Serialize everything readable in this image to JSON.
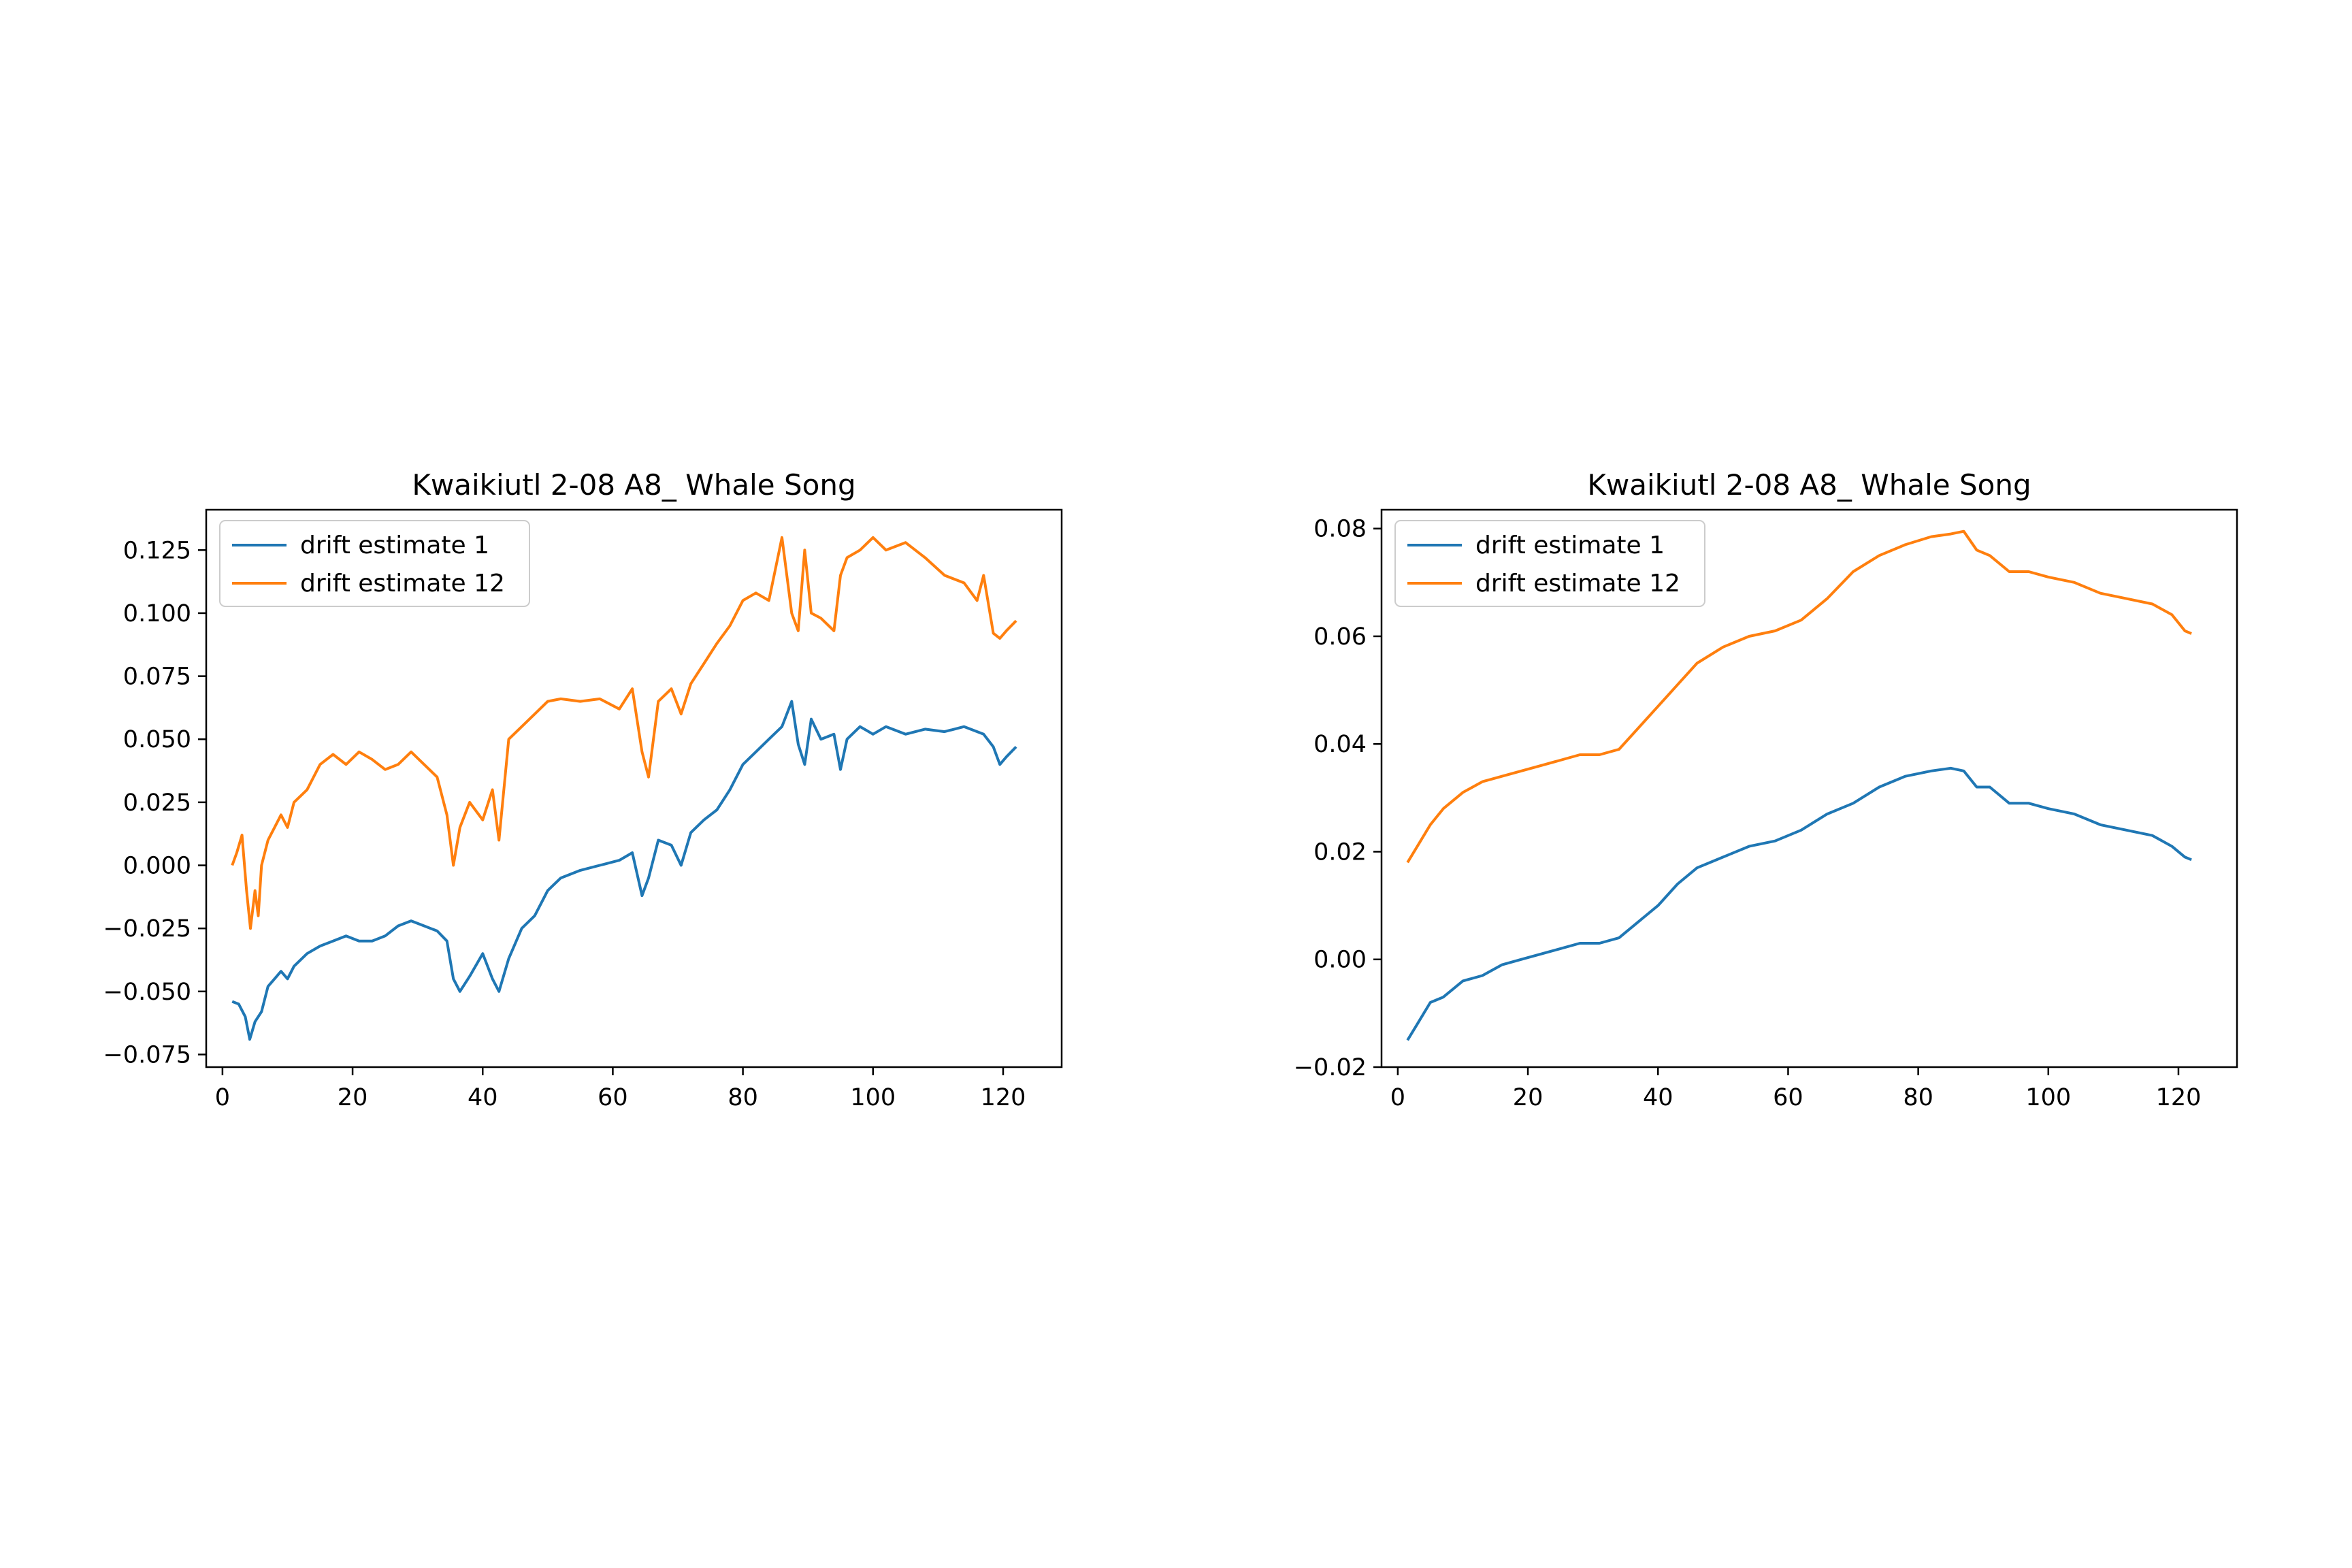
{
  "chart_data": [
    {
      "type": "line",
      "title": "Kwaikiutl 2-08 A8_ Whale Song",
      "xlabel": "",
      "ylabel": "",
      "xlim": [
        -2.5,
        129
      ],
      "ylim": [
        -0.08,
        0.141
      ],
      "grid": false,
      "legend_position": "top-left",
      "x_ticks": [
        0,
        20,
        40,
        60,
        80,
        100,
        120
      ],
      "x_tick_labels": [
        "0",
        "20",
        "40",
        "60",
        "80",
        "100",
        "120"
      ],
      "y_ticks": [
        -0.075,
        -0.05,
        -0.025,
        0.0,
        0.025,
        0.05,
        0.075,
        0.1,
        0.125
      ],
      "y_tick_labels": [
        "−0.075",
        "−0.050",
        "−0.025",
        "0.000",
        "0.025",
        "0.050",
        "0.075",
        "0.100",
        "0.125"
      ],
      "series": [
        {
          "name": "drift estimate 1",
          "color": "#1f77b4",
          "x": [
            1.5,
            2.5,
            3.5,
            4.2,
            5,
            6,
            7,
            8,
            9,
            10,
            11,
            13,
            15,
            17,
            19,
            21,
            23,
            25,
            27,
            29,
            31,
            33,
            34.5,
            35.5,
            36.5,
            38,
            40,
            41.5,
            42.5,
            44,
            46,
            48,
            50,
            52,
            55,
            58,
            61,
            63,
            64.5,
            65.5,
            67,
            69,
            70.5,
            72,
            74,
            76,
            78,
            80,
            82,
            84,
            86,
            87.5,
            88.5,
            89.5,
            90.5,
            92,
            94,
            95,
            96,
            98,
            100,
            102,
            105,
            108,
            111,
            114,
            117,
            118.5,
            119.5,
            120.5,
            122
          ],
          "y": [
            -0.054,
            -0.055,
            -0.06,
            -0.069,
            -0.062,
            -0.058,
            -0.048,
            -0.045,
            -0.042,
            -0.045,
            -0.04,
            -0.035,
            -0.032,
            -0.03,
            -0.028,
            -0.03,
            -0.03,
            -0.028,
            -0.024,
            -0.022,
            -0.024,
            -0.026,
            -0.03,
            -0.045,
            -0.05,
            -0.044,
            -0.035,
            -0.045,
            -0.05,
            -0.037,
            -0.025,
            -0.02,
            -0.01,
            -0.005,
            -0.002,
            0.0,
            0.002,
            0.005,
            -0.012,
            -0.005,
            0.01,
            0.008,
            0.0,
            0.013,
            0.018,
            0.022,
            0.03,
            0.04,
            0.045,
            0.05,
            0.055,
            0.065,
            0.048,
            0.04,
            0.058,
            0.05,
            0.052,
            0.038,
            0.05,
            0.055,
            0.052,
            0.055,
            0.052,
            0.054,
            0.053,
            0.055,
            0.052,
            0.047,
            0.04,
            0.043,
            0.047
          ]
        },
        {
          "name": "drift estimate 12",
          "color": "#ff7f0e",
          "x": [
            1.5,
            2.2,
            3,
            3.7,
            4.3,
            5,
            5.5,
            6,
            7,
            8,
            9,
            10,
            11,
            13,
            15,
            17,
            19,
            21,
            23,
            25,
            27,
            29,
            31,
            33,
            34.5,
            35.5,
            36.5,
            38,
            40,
            41.5,
            42.5,
            44,
            46,
            48,
            50,
            52,
            55,
            58,
            61,
            63,
            64.5,
            65.5,
            67,
            69,
            70.5,
            72,
            74,
            76,
            78,
            80,
            82,
            84,
            86,
            87.5,
            88.5,
            89.5,
            90.5,
            92,
            94,
            95,
            96,
            98,
            100,
            102,
            105,
            108,
            111,
            114,
            116,
            117,
            118.5,
            119.5,
            120.5,
            122
          ],
          "y": [
            0.0,
            0.005,
            0.012,
            -0.01,
            -0.025,
            -0.01,
            -0.02,
            0.0,
            0.01,
            0.015,
            0.02,
            0.015,
            0.025,
            0.03,
            0.04,
            0.044,
            0.04,
            0.045,
            0.042,
            0.038,
            0.04,
            0.045,
            0.04,
            0.035,
            0.02,
            0.0,
            0.015,
            0.025,
            0.018,
            0.03,
            0.01,
            0.05,
            0.055,
            0.06,
            0.065,
            0.066,
            0.065,
            0.066,
            0.062,
            0.07,
            0.045,
            0.035,
            0.065,
            0.07,
            0.06,
            0.072,
            0.08,
            0.088,
            0.095,
            0.105,
            0.108,
            0.105,
            0.13,
            0.1,
            0.093,
            0.125,
            0.1,
            0.098,
            0.093,
            0.115,
            0.122,
            0.125,
            0.13,
            0.125,
            0.128,
            0.122,
            0.115,
            0.112,
            0.105,
            0.115,
            0.092,
            0.09,
            0.093,
            0.097
          ]
        }
      ]
    },
    {
      "type": "line",
      "title": "Kwaikiutl 2-08 A8_ Whale Song",
      "xlabel": "",
      "ylabel": "",
      "xlim": [
        -2.5,
        129
      ],
      "ylim": [
        -0.02,
        0.0835
      ],
      "grid": false,
      "legend_position": "top-left",
      "x_ticks": [
        0,
        20,
        40,
        60,
        80,
        100,
        120
      ],
      "x_tick_labels": [
        "0",
        "20",
        "40",
        "60",
        "80",
        "100",
        "120"
      ],
      "y_ticks": [
        -0.02,
        0.0,
        0.02,
        0.04,
        0.06,
        0.08
      ],
      "y_tick_labels": [
        "−0.02",
        "0.00",
        "0.02",
        "0.04",
        "0.06",
        "0.08"
      ],
      "series": [
        {
          "name": "drift estimate 1",
          "color": "#1f77b4",
          "x": [
            1.5,
            3,
            5,
            7,
            10,
            13,
            16,
            19,
            22,
            25,
            28,
            31,
            34,
            37,
            40,
            43,
            46,
            50,
            54,
            58,
            62,
            66,
            70,
            74,
            78,
            82,
            85,
            87,
            89,
            91,
            94,
            97,
            100,
            104,
            108,
            112,
            116,
            119,
            121,
            122
          ],
          "y": [
            -0.015,
            -0.012,
            -0.008,
            -0.007,
            -0.004,
            -0.003,
            -0.001,
            0.0,
            0.001,
            0.002,
            0.003,
            0.003,
            0.004,
            0.007,
            0.01,
            0.014,
            0.017,
            0.019,
            0.021,
            0.022,
            0.024,
            0.027,
            0.029,
            0.032,
            0.034,
            0.035,
            0.0355,
            0.035,
            0.032,
            0.032,
            0.029,
            0.029,
            0.028,
            0.027,
            0.025,
            0.024,
            0.023,
            0.021,
            0.019,
            0.0185
          ]
        },
        {
          "name": "drift estimate 12",
          "color": "#ff7f0e",
          "x": [
            1.5,
            3,
            5,
            7,
            10,
            13,
            16,
            19,
            22,
            25,
            28,
            31,
            34,
            37,
            40,
            43,
            46,
            50,
            54,
            58,
            62,
            66,
            70,
            74,
            78,
            82,
            85,
            87,
            89,
            91,
            94,
            97,
            100,
            104,
            108,
            112,
            116,
            119,
            121,
            122
          ],
          "y": [
            0.018,
            0.021,
            0.025,
            0.028,
            0.031,
            0.033,
            0.034,
            0.035,
            0.036,
            0.037,
            0.038,
            0.038,
            0.039,
            0.043,
            0.047,
            0.051,
            0.055,
            0.058,
            0.06,
            0.061,
            0.063,
            0.067,
            0.072,
            0.075,
            0.077,
            0.0785,
            0.079,
            0.0795,
            0.076,
            0.075,
            0.072,
            0.072,
            0.071,
            0.07,
            0.068,
            0.067,
            0.066,
            0.064,
            0.061,
            0.0605
          ]
        }
      ]
    }
  ]
}
